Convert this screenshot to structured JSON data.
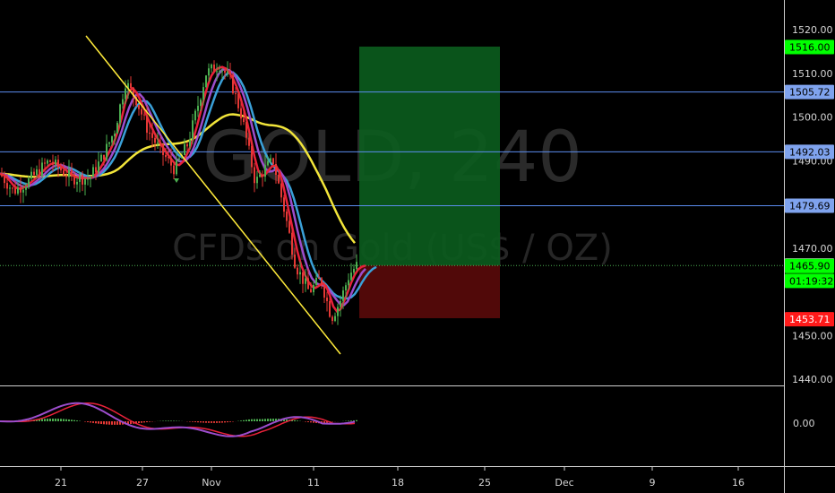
{
  "watermark": {
    "symbol": "GOLD, 240",
    "description": "CFDs on Gold (US$ / OZ)"
  },
  "colors": {
    "background": "#000000",
    "bull": "#4caf50",
    "bear": "#e53935",
    "hline": "#5b8def",
    "trendline": "#ffeb3b",
    "ma_red": "#e8213a",
    "ma_purple": "#9c4dcc",
    "ma_blue": "#3aa0d8",
    "ma_yellow": "#f2e53a",
    "take_profit_zone": "#0b5d1e",
    "stop_zone": "#5a0a0a",
    "tag_green": "#00ff00",
    "tag_red": "#ff1a1a",
    "tag_blue": "#7fa3ee"
  },
  "chart_data": {
    "type": "candlestick",
    "symbol": "GOLD",
    "timeframe": "240",
    "x_axis": {
      "tick_labels": [
        "21",
        "27",
        "Nov",
        "11",
        "18",
        "25",
        "Dec",
        "9",
        "16"
      ]
    },
    "y_axis": {
      "tick_labels": [
        "1520.00",
        "1510.00",
        "1500.00",
        "1490.00",
        "1470.00",
        "1450.00",
        "1440.00"
      ],
      "range": [
        1437,
        1522
      ]
    },
    "price_tags": [
      {
        "label": "1516.00",
        "value": 1516.0,
        "style": "green"
      },
      {
        "label": "1505.72",
        "value": 1505.72,
        "style": "blue"
      },
      {
        "label": "1492.03",
        "value": 1492.03,
        "style": "blue"
      },
      {
        "label": "1479.69",
        "value": 1479.69,
        "style": "blue"
      },
      {
        "label": "1466.00",
        "value": 1466.0,
        "style": "white"
      },
      {
        "label": "1465.90",
        "value": 1465.9,
        "style": "green"
      },
      {
        "label": "01:19:32",
        "value": 1462.5,
        "style": "green"
      },
      {
        "label": "1453.71",
        "value": 1453.71,
        "style": "red"
      }
    ],
    "horizontal_lines": [
      1505.72,
      1492.03,
      1479.69
    ],
    "current_price_line": 1466.0,
    "position": {
      "entry": 1466.0,
      "target": 1516.0,
      "stop": 1453.71
    },
    "indicator": {
      "type": "macd",
      "zero_label": "0.00"
    }
  }
}
